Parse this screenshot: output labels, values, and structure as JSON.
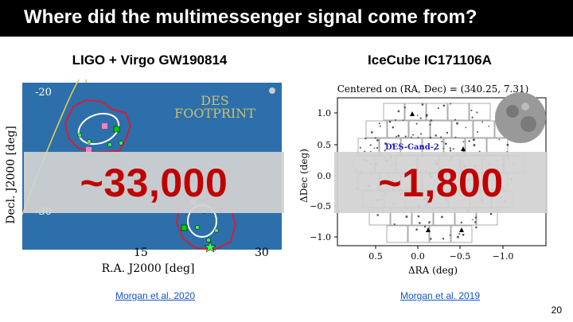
{
  "slide": {
    "title": "Where did the multimessenger signal come from?",
    "page_number": "20"
  },
  "left": {
    "heading": "LIGO + Virgo GW190814",
    "overlay_value": "~33,000",
    "reference": "Morgan et al. 2020",
    "plot": {
      "label_line1": "DES",
      "label_line2": "FOOTPRINT",
      "y_ticks": [
        "-20",
        "-30"
      ],
      "x_ticks": [
        "15",
        "30"
      ],
      "ylabel": "Decl. J2000 [deg]",
      "xlabel": "R.A. J2000 [deg]"
    }
  },
  "right": {
    "heading": "IceCube IC171106A",
    "overlay_value": "~1,800",
    "reference": "Morgan et al. 2019",
    "plot": {
      "title": "Centered on (RA, Dec) = (340.25, 7.31)",
      "candidate_label": "DES-Cand-2",
      "y_ticks": [
        "1.0",
        "0.5",
        "0.0",
        "−0.5",
        "−1.0"
      ],
      "x_ticks": [
        "0.5",
        "0.0",
        "−0.5",
        "−1.0"
      ],
      "ylabel": "ΔDec (deg)",
      "xlabel": "ΔRA (deg)"
    }
  },
  "colors": {
    "overlay_text": "#c00000",
    "map_background": "#2d6faa",
    "contour": "#d0203a",
    "link": "#1155cc"
  }
}
